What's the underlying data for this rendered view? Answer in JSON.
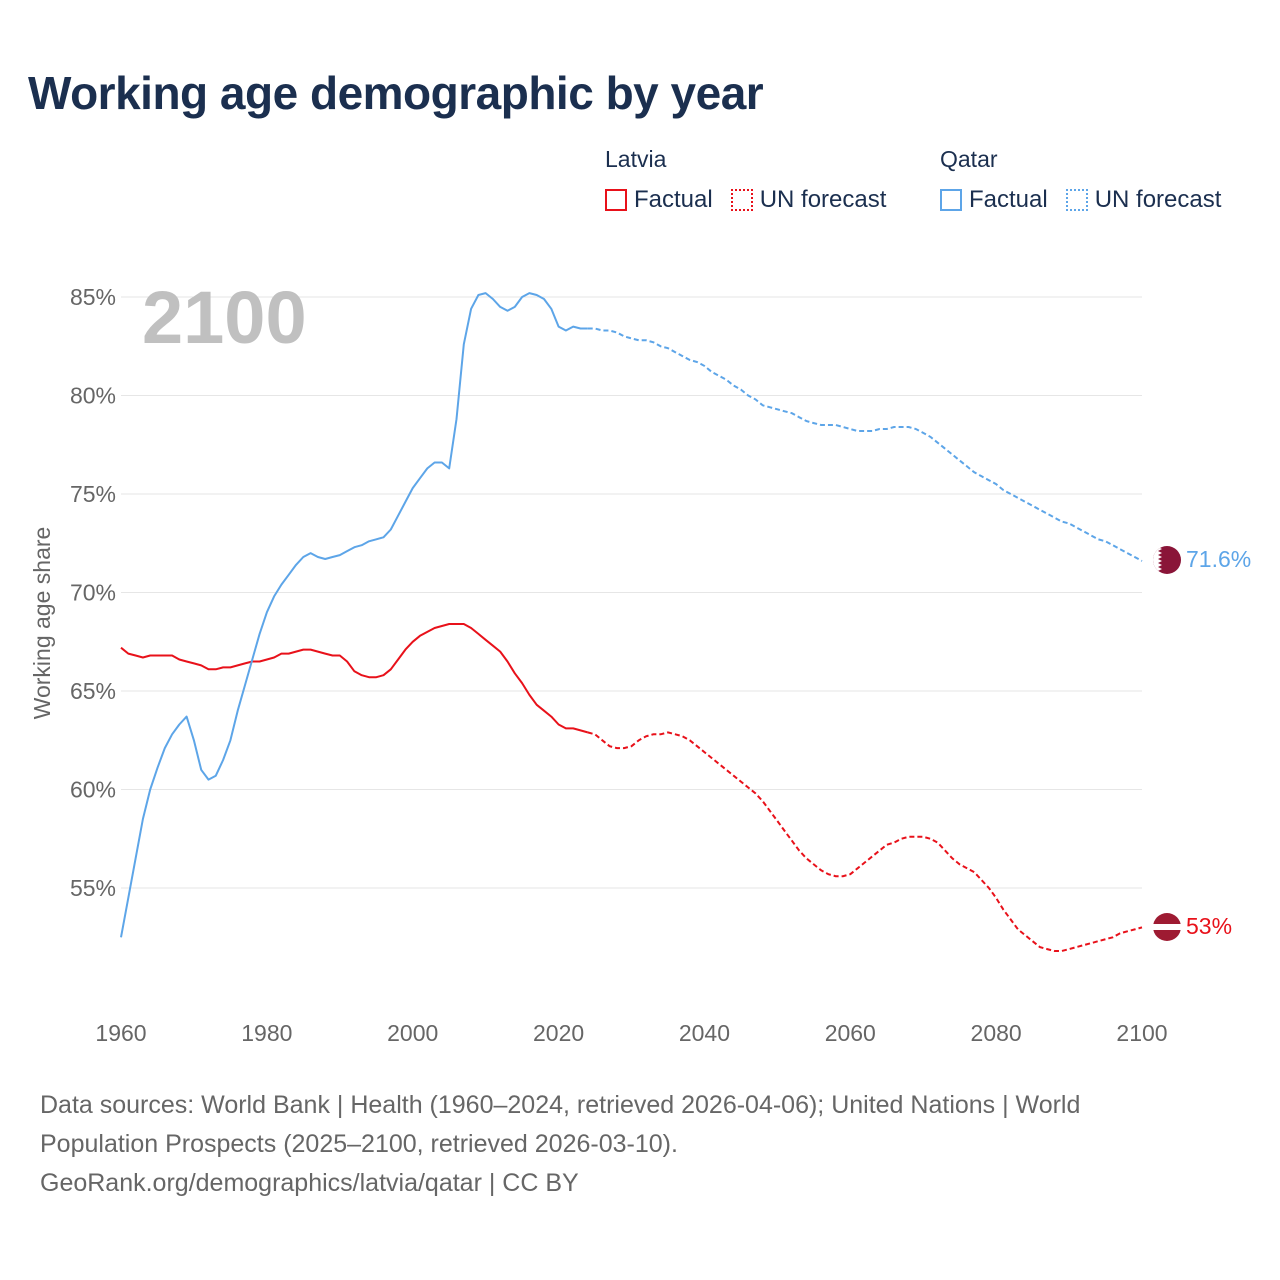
{
  "title": "Working age demographic by year",
  "legend": {
    "latvia": {
      "name": "Latvia",
      "factual": "Factual",
      "forecast": "UN forecast"
    },
    "qatar": {
      "name": "Qatar",
      "factual": "Factual",
      "forecast": "UN forecast"
    }
  },
  "colors": {
    "latvia": "#e8111a",
    "qatar": "#5da5e8",
    "title": "#1b2f4f",
    "axis_text": "#666666",
    "grid": "#e6e6e6",
    "year_watermark": "#c0c0c0",
    "latvia_flag": "#9e1b32",
    "qatar_flag": "#8a1538"
  },
  "footer": {
    "line1": "Data sources: World Bank | Health (1960–2024, retrieved 2026-04-06); United Nations | World",
    "line2": "Population Prospects (2025–2100, retrieved 2026-03-10).",
    "line3": "GeoRank.org/demographics/latvia/qatar | CC BY"
  },
  "chart_data": {
    "type": "line",
    "current_year_label": "2100",
    "ylabel": "Working age share",
    "xlabel": "",
    "xlim": [
      1960,
      2100
    ],
    "ylim": [
      50,
      86
    ],
    "x_ticks": [
      "1960",
      "1980",
      "2000",
      "2020",
      "2040",
      "2060",
      "2080",
      "2100"
    ],
    "y_ticks": [
      {
        "value": 55,
        "label": "55%"
      },
      {
        "value": 60,
        "label": "60%"
      },
      {
        "value": 65,
        "label": "65%"
      },
      {
        "value": 70,
        "label": "70%"
      },
      {
        "value": 75,
        "label": "75%"
      },
      {
        "value": 80,
        "label": "80%"
      },
      {
        "value": 85,
        "label": "85%"
      }
    ],
    "series": [
      {
        "name": "Latvia",
        "end_label": "53%",
        "factual": [
          [
            1960,
            67.2
          ],
          [
            1961,
            66.9
          ],
          [
            1962,
            66.8
          ],
          [
            1963,
            66.7
          ],
          [
            1964,
            66.8
          ],
          [
            1965,
            66.8
          ],
          [
            1966,
            66.8
          ],
          [
            1967,
            66.8
          ],
          [
            1968,
            66.6
          ],
          [
            1969,
            66.5
          ],
          [
            1970,
            66.4
          ],
          [
            1971,
            66.3
          ],
          [
            1972,
            66.1
          ],
          [
            1973,
            66.1
          ],
          [
            1974,
            66.2
          ],
          [
            1975,
            66.2
          ],
          [
            1976,
            66.3
          ],
          [
            1977,
            66.4
          ],
          [
            1978,
            66.5
          ],
          [
            1979,
            66.5
          ],
          [
            1980,
            66.6
          ],
          [
            1981,
            66.7
          ],
          [
            1982,
            66.9
          ],
          [
            1983,
            66.9
          ],
          [
            1984,
            67.0
          ],
          [
            1985,
            67.1
          ],
          [
            1986,
            67.1
          ],
          [
            1987,
            67.0
          ],
          [
            1988,
            66.9
          ],
          [
            1989,
            66.8
          ],
          [
            1990,
            66.8
          ],
          [
            1991,
            66.5
          ],
          [
            1992,
            66.0
          ],
          [
            1993,
            65.8
          ],
          [
            1994,
            65.7
          ],
          [
            1995,
            65.7
          ],
          [
            1996,
            65.8
          ],
          [
            1997,
            66.1
          ],
          [
            1998,
            66.6
          ],
          [
            1999,
            67.1
          ],
          [
            2000,
            67.5
          ],
          [
            2001,
            67.8
          ],
          [
            2002,
            68.0
          ],
          [
            2003,
            68.2
          ],
          [
            2004,
            68.3
          ],
          [
            2005,
            68.4
          ],
          [
            2006,
            68.4
          ],
          [
            2007,
            68.4
          ],
          [
            2008,
            68.2
          ],
          [
            2009,
            67.9
          ],
          [
            2010,
            67.6
          ],
          [
            2011,
            67.3
          ],
          [
            2012,
            67.0
          ],
          [
            2013,
            66.5
          ],
          [
            2014,
            65.9
          ],
          [
            2015,
            65.4
          ],
          [
            2016,
            64.8
          ],
          [
            2017,
            64.3
          ],
          [
            2018,
            64.0
          ],
          [
            2019,
            63.7
          ],
          [
            2020,
            63.3
          ],
          [
            2021,
            63.1
          ],
          [
            2022,
            63.1
          ],
          [
            2023,
            63.0
          ],
          [
            2024,
            62.9
          ]
        ],
        "forecast": [
          [
            2024,
            62.9
          ],
          [
            2025,
            62.8
          ],
          [
            2026,
            62.5
          ],
          [
            2027,
            62.2
          ],
          [
            2028,
            62.1
          ],
          [
            2029,
            62.1
          ],
          [
            2030,
            62.2
          ],
          [
            2031,
            62.5
          ],
          [
            2032,
            62.7
          ],
          [
            2033,
            62.8
          ],
          [
            2034,
            62.8
          ],
          [
            2035,
            62.9
          ],
          [
            2036,
            62.8
          ],
          [
            2037,
            62.7
          ],
          [
            2038,
            62.5
          ],
          [
            2039,
            62.2
          ],
          [
            2040,
            61.9
          ],
          [
            2041,
            61.6
          ],
          [
            2042,
            61.3
          ],
          [
            2043,
            61.0
          ],
          [
            2044,
            60.7
          ],
          [
            2045,
            60.4
          ],
          [
            2046,
            60.1
          ],
          [
            2047,
            59.8
          ],
          [
            2048,
            59.4
          ],
          [
            2049,
            58.9
          ],
          [
            2050,
            58.4
          ],
          [
            2051,
            57.9
          ],
          [
            2052,
            57.4
          ],
          [
            2053,
            56.9
          ],
          [
            2054,
            56.5
          ],
          [
            2055,
            56.2
          ],
          [
            2056,
            55.9
          ],
          [
            2057,
            55.7
          ],
          [
            2058,
            55.6
          ],
          [
            2059,
            55.6
          ],
          [
            2060,
            55.7
          ],
          [
            2061,
            56.0
          ],
          [
            2062,
            56.3
          ],
          [
            2063,
            56.6
          ],
          [
            2064,
            56.9
          ],
          [
            2065,
            57.2
          ],
          [
            2066,
            57.3
          ],
          [
            2067,
            57.5
          ],
          [
            2068,
            57.6
          ],
          [
            2069,
            57.6
          ],
          [
            2070,
            57.6
          ],
          [
            2071,
            57.5
          ],
          [
            2072,
            57.3
          ],
          [
            2073,
            56.9
          ],
          [
            2074,
            56.5
          ],
          [
            2075,
            56.2
          ],
          [
            2076,
            56.0
          ],
          [
            2077,
            55.8
          ],
          [
            2078,
            55.4
          ],
          [
            2079,
            55.0
          ],
          [
            2080,
            54.5
          ],
          [
            2081,
            53.9
          ],
          [
            2082,
            53.4
          ],
          [
            2083,
            52.9
          ],
          [
            2084,
            52.6
          ],
          [
            2085,
            52.3
          ],
          [
            2086,
            52.0
          ],
          [
            2087,
            51.9
          ],
          [
            2088,
            51.8
          ],
          [
            2089,
            51.8
          ],
          [
            2090,
            51.9
          ],
          [
            2091,
            52.0
          ],
          [
            2092,
            52.1
          ],
          [
            2093,
            52.2
          ],
          [
            2094,
            52.3
          ],
          [
            2095,
            52.4
          ],
          [
            2096,
            52.5
          ],
          [
            2097,
            52.7
          ],
          [
            2098,
            52.8
          ],
          [
            2099,
            52.9
          ],
          [
            2100,
            53.0
          ]
        ]
      },
      {
        "name": "Qatar",
        "end_label": "71.6%",
        "factual": [
          [
            1960,
            52.5
          ],
          [
            1961,
            54.5
          ],
          [
            1962,
            56.5
          ],
          [
            1963,
            58.5
          ],
          [
            1964,
            60.0
          ],
          [
            1965,
            61.1
          ],
          [
            1966,
            62.1
          ],
          [
            1967,
            62.8
          ],
          [
            1968,
            63.3
          ],
          [
            1969,
            63.7
          ],
          [
            1970,
            62.5
          ],
          [
            1971,
            61.0
          ],
          [
            1972,
            60.5
          ],
          [
            1973,
            60.7
          ],
          [
            1974,
            61.5
          ],
          [
            1975,
            62.5
          ],
          [
            1976,
            64.0
          ],
          [
            1977,
            65.3
          ],
          [
            1978,
            66.6
          ],
          [
            1979,
            67.9
          ],
          [
            1980,
            69.0
          ],
          [
            1981,
            69.8
          ],
          [
            1982,
            70.4
          ],
          [
            1983,
            70.9
          ],
          [
            1984,
            71.4
          ],
          [
            1985,
            71.8
          ],
          [
            1986,
            72.0
          ],
          [
            1987,
            71.8
          ],
          [
            1988,
            71.7
          ],
          [
            1989,
            71.8
          ],
          [
            1990,
            71.9
          ],
          [
            1991,
            72.1
          ],
          [
            1992,
            72.3
          ],
          [
            1993,
            72.4
          ],
          [
            1994,
            72.6
          ],
          [
            1995,
            72.7
          ],
          [
            1996,
            72.8
          ],
          [
            1997,
            73.2
          ],
          [
            1998,
            73.9
          ],
          [
            1999,
            74.6
          ],
          [
            2000,
            75.3
          ],
          [
            2001,
            75.8
          ],
          [
            2002,
            76.3
          ],
          [
            2003,
            76.6
          ],
          [
            2004,
            76.6
          ],
          [
            2005,
            76.3
          ],
          [
            2006,
            78.8
          ],
          [
            2007,
            82.6
          ],
          [
            2008,
            84.4
          ],
          [
            2009,
            85.1
          ],
          [
            2010,
            85.2
          ],
          [
            2011,
            84.9
          ],
          [
            2012,
            84.5
          ],
          [
            2013,
            84.3
          ],
          [
            2014,
            84.5
          ],
          [
            2015,
            85.0
          ],
          [
            2016,
            85.2
          ],
          [
            2017,
            85.1
          ],
          [
            2018,
            84.9
          ],
          [
            2019,
            84.4
          ],
          [
            2020,
            83.5
          ],
          [
            2021,
            83.3
          ],
          [
            2022,
            83.5
          ],
          [
            2023,
            83.4
          ],
          [
            2024,
            83.4
          ]
        ],
        "forecast": [
          [
            2024,
            83.4
          ],
          [
            2025,
            83.4
          ],
          [
            2026,
            83.3
          ],
          [
            2027,
            83.3
          ],
          [
            2028,
            83.2
          ],
          [
            2029,
            83.0
          ],
          [
            2030,
            82.9
          ],
          [
            2031,
            82.8
          ],
          [
            2032,
            82.8
          ],
          [
            2033,
            82.7
          ],
          [
            2034,
            82.5
          ],
          [
            2035,
            82.4
          ],
          [
            2036,
            82.2
          ],
          [
            2037,
            82.0
          ],
          [
            2038,
            81.8
          ],
          [
            2039,
            81.7
          ],
          [
            2040,
            81.5
          ],
          [
            2041,
            81.2
          ],
          [
            2042,
            81.0
          ],
          [
            2043,
            80.8
          ],
          [
            2044,
            80.5
          ],
          [
            2045,
            80.3
          ],
          [
            2046,
            80.0
          ],
          [
            2047,
            79.8
          ],
          [
            2048,
            79.5
          ],
          [
            2049,
            79.4
          ],
          [
            2050,
            79.3
          ],
          [
            2051,
            79.2
          ],
          [
            2052,
            79.1
          ],
          [
            2053,
            78.9
          ],
          [
            2054,
            78.7
          ],
          [
            2055,
            78.6
          ],
          [
            2056,
            78.5
          ],
          [
            2057,
            78.5
          ],
          [
            2058,
            78.5
          ],
          [
            2059,
            78.4
          ],
          [
            2060,
            78.3
          ],
          [
            2061,
            78.2
          ],
          [
            2062,
            78.2
          ],
          [
            2063,
            78.2
          ],
          [
            2064,
            78.3
          ],
          [
            2065,
            78.3
          ],
          [
            2066,
            78.4
          ],
          [
            2067,
            78.4
          ],
          [
            2068,
            78.4
          ],
          [
            2069,
            78.3
          ],
          [
            2070,
            78.1
          ],
          [
            2071,
            77.9
          ],
          [
            2072,
            77.6
          ],
          [
            2073,
            77.3
          ],
          [
            2074,
            77.0
          ],
          [
            2075,
            76.7
          ],
          [
            2076,
            76.4
          ],
          [
            2077,
            76.1
          ],
          [
            2078,
            75.9
          ],
          [
            2079,
            75.7
          ],
          [
            2080,
            75.5
          ],
          [
            2081,
            75.2
          ],
          [
            2082,
            75.0
          ],
          [
            2083,
            74.8
          ],
          [
            2084,
            74.6
          ],
          [
            2085,
            74.4
          ],
          [
            2086,
            74.2
          ],
          [
            2087,
            74.0
          ],
          [
            2088,
            73.8
          ],
          [
            2089,
            73.6
          ],
          [
            2090,
            73.5
          ],
          [
            2091,
            73.3
          ],
          [
            2092,
            73.1
          ],
          [
            2093,
            72.9
          ],
          [
            2094,
            72.7
          ],
          [
            2095,
            72.6
          ],
          [
            2096,
            72.4
          ],
          [
            2097,
            72.2
          ],
          [
            2098,
            72.0
          ],
          [
            2099,
            71.8
          ],
          [
            2100,
            71.6
          ]
        ]
      }
    ]
  }
}
